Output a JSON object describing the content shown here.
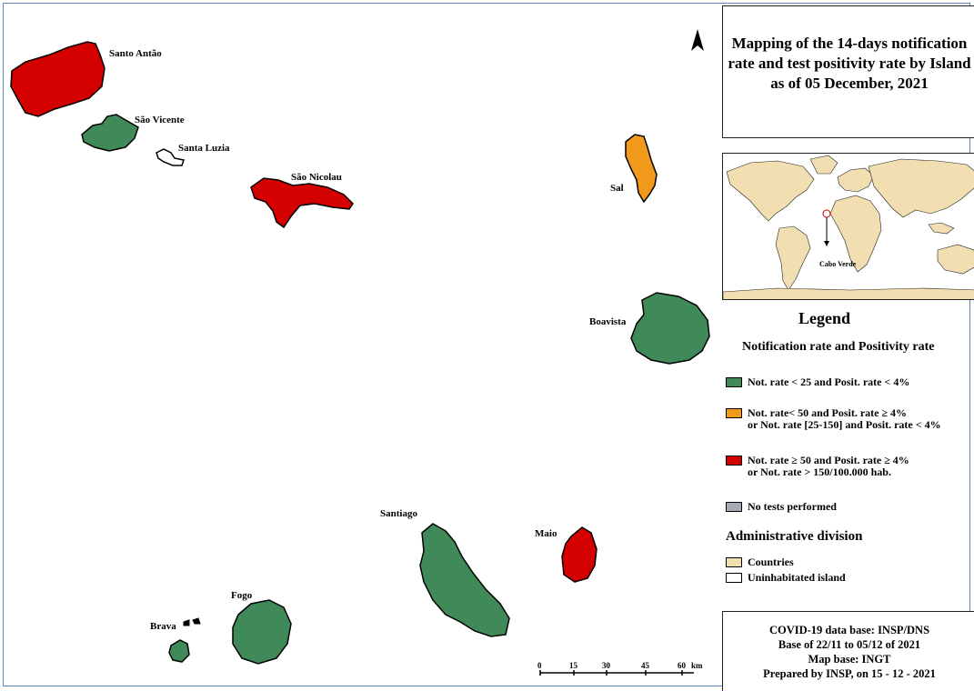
{
  "title": "Mapping of the 14-days notification rate and test positivity rate by Island as of 05 December, 2021",
  "colors": {
    "green": "#3f8a58",
    "orange": "#f29a1b",
    "red": "#d40000",
    "gray": "#a7a9b3",
    "countries": "#f2dfb1",
    "uninhabited": "#ffffff",
    "frame": "#5b87c9"
  },
  "islands": {
    "santo_antao": {
      "label": "Santo Antão",
      "category": "red"
    },
    "sao_vicente": {
      "label": "São Vicente",
      "category": "green"
    },
    "santa_luzia": {
      "label": "Santa Luzia",
      "category": "uninhabited"
    },
    "sao_nicolau": {
      "label": "São Nicolau",
      "category": "red"
    },
    "sal": {
      "label": "Sal",
      "category": "orange"
    },
    "boavista": {
      "label": "Boavista",
      "category": "green"
    },
    "santiago": {
      "label": "Santiago",
      "category": "green"
    },
    "maio": {
      "label": "Maio",
      "category": "red"
    },
    "fogo": {
      "label": "Fogo",
      "category": "green"
    },
    "brava": {
      "label": "Brava",
      "category": "green"
    }
  },
  "locator_label": "Cabo Verde",
  "legend": {
    "title": "Legend",
    "subtitle": "Notification rate and Positivity rate",
    "items": [
      {
        "category": "green",
        "label": "Not. rate < 25 and Posit. rate < 4%"
      },
      {
        "category": "orange",
        "line1": "Not. rate< 50 and Posit. rate  ≥ 4%",
        "line2": "or Not. rate [25-150] and Posit. rate  < 4%"
      },
      {
        "category": "red",
        "line1": "Not. rate ≥ 50 and Posit. rate  ≥ 4%",
        "line2": "or Not. rate > 150/100.000 hab."
      },
      {
        "category": "gray",
        "label": "No tests performed"
      }
    ]
  },
  "admin": {
    "title": "Administrative division",
    "items": [
      {
        "category": "countries",
        "label": "Countries"
      },
      {
        "category": "uninhabited",
        "label": "Uninhabitated island"
      }
    ]
  },
  "scale": {
    "ticks": [
      "0",
      "15",
      "30",
      "45",
      "60"
    ],
    "unit": "km"
  },
  "credits": [
    "COVID-19 data base: INSP/DNS",
    "Base of 22/11 to 05/12 of 2021",
    "Map base: INGT",
    "Prepared by INSP, on 15 - 12 - 2021"
  ]
}
